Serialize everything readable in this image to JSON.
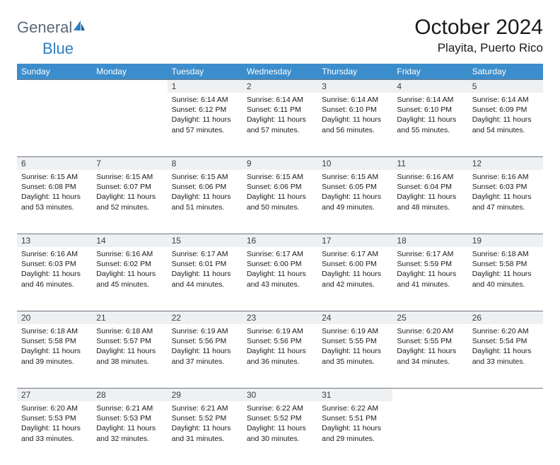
{
  "brand": {
    "part1": "General",
    "part2": "Blue"
  },
  "title": {
    "month": "October 2024",
    "location": "Playita, Puerto Rico"
  },
  "colors": {
    "header_bg": "#3c8dcc",
    "header_text": "#ffffff",
    "daynum_bg": "#eef0f2",
    "daynum_border": "#6e7680",
    "text": "#1a1a1a",
    "logo_gray": "#5a6a78",
    "logo_blue": "#2d7fc1"
  },
  "weekdays": [
    "Sunday",
    "Monday",
    "Tuesday",
    "Wednesday",
    "Thursday",
    "Friday",
    "Saturday"
  ],
  "weeks": [
    [
      null,
      null,
      {
        "n": "1",
        "sr": "6:14 AM",
        "ss": "6:12 PM",
        "dl": "11 hours and 57 minutes."
      },
      {
        "n": "2",
        "sr": "6:14 AM",
        "ss": "6:11 PM",
        "dl": "11 hours and 57 minutes."
      },
      {
        "n": "3",
        "sr": "6:14 AM",
        "ss": "6:10 PM",
        "dl": "11 hours and 56 minutes."
      },
      {
        "n": "4",
        "sr": "6:14 AM",
        "ss": "6:10 PM",
        "dl": "11 hours and 55 minutes."
      },
      {
        "n": "5",
        "sr": "6:14 AM",
        "ss": "6:09 PM",
        "dl": "11 hours and 54 minutes."
      }
    ],
    [
      {
        "n": "6",
        "sr": "6:15 AM",
        "ss": "6:08 PM",
        "dl": "11 hours and 53 minutes."
      },
      {
        "n": "7",
        "sr": "6:15 AM",
        "ss": "6:07 PM",
        "dl": "11 hours and 52 minutes."
      },
      {
        "n": "8",
        "sr": "6:15 AM",
        "ss": "6:06 PM",
        "dl": "11 hours and 51 minutes."
      },
      {
        "n": "9",
        "sr": "6:15 AM",
        "ss": "6:06 PM",
        "dl": "11 hours and 50 minutes."
      },
      {
        "n": "10",
        "sr": "6:15 AM",
        "ss": "6:05 PM",
        "dl": "11 hours and 49 minutes."
      },
      {
        "n": "11",
        "sr": "6:16 AM",
        "ss": "6:04 PM",
        "dl": "11 hours and 48 minutes."
      },
      {
        "n": "12",
        "sr": "6:16 AM",
        "ss": "6:03 PM",
        "dl": "11 hours and 47 minutes."
      }
    ],
    [
      {
        "n": "13",
        "sr": "6:16 AM",
        "ss": "6:03 PM",
        "dl": "11 hours and 46 minutes."
      },
      {
        "n": "14",
        "sr": "6:16 AM",
        "ss": "6:02 PM",
        "dl": "11 hours and 45 minutes."
      },
      {
        "n": "15",
        "sr": "6:17 AM",
        "ss": "6:01 PM",
        "dl": "11 hours and 44 minutes."
      },
      {
        "n": "16",
        "sr": "6:17 AM",
        "ss": "6:00 PM",
        "dl": "11 hours and 43 minutes."
      },
      {
        "n": "17",
        "sr": "6:17 AM",
        "ss": "6:00 PM",
        "dl": "11 hours and 42 minutes."
      },
      {
        "n": "18",
        "sr": "6:17 AM",
        "ss": "5:59 PM",
        "dl": "11 hours and 41 minutes."
      },
      {
        "n": "19",
        "sr": "6:18 AM",
        "ss": "5:58 PM",
        "dl": "11 hours and 40 minutes."
      }
    ],
    [
      {
        "n": "20",
        "sr": "6:18 AM",
        "ss": "5:58 PM",
        "dl": "11 hours and 39 minutes."
      },
      {
        "n": "21",
        "sr": "6:18 AM",
        "ss": "5:57 PM",
        "dl": "11 hours and 38 minutes."
      },
      {
        "n": "22",
        "sr": "6:19 AM",
        "ss": "5:56 PM",
        "dl": "11 hours and 37 minutes."
      },
      {
        "n": "23",
        "sr": "6:19 AM",
        "ss": "5:56 PM",
        "dl": "11 hours and 36 minutes."
      },
      {
        "n": "24",
        "sr": "6:19 AM",
        "ss": "5:55 PM",
        "dl": "11 hours and 35 minutes."
      },
      {
        "n": "25",
        "sr": "6:20 AM",
        "ss": "5:55 PM",
        "dl": "11 hours and 34 minutes."
      },
      {
        "n": "26",
        "sr": "6:20 AM",
        "ss": "5:54 PM",
        "dl": "11 hours and 33 minutes."
      }
    ],
    [
      {
        "n": "27",
        "sr": "6:20 AM",
        "ss": "5:53 PM",
        "dl": "11 hours and 33 minutes."
      },
      {
        "n": "28",
        "sr": "6:21 AM",
        "ss": "5:53 PM",
        "dl": "11 hours and 32 minutes."
      },
      {
        "n": "29",
        "sr": "6:21 AM",
        "ss": "5:52 PM",
        "dl": "11 hours and 31 minutes."
      },
      {
        "n": "30",
        "sr": "6:22 AM",
        "ss": "5:52 PM",
        "dl": "11 hours and 30 minutes."
      },
      {
        "n": "31",
        "sr": "6:22 AM",
        "ss": "5:51 PM",
        "dl": "11 hours and 29 minutes."
      },
      null,
      null
    ]
  ]
}
